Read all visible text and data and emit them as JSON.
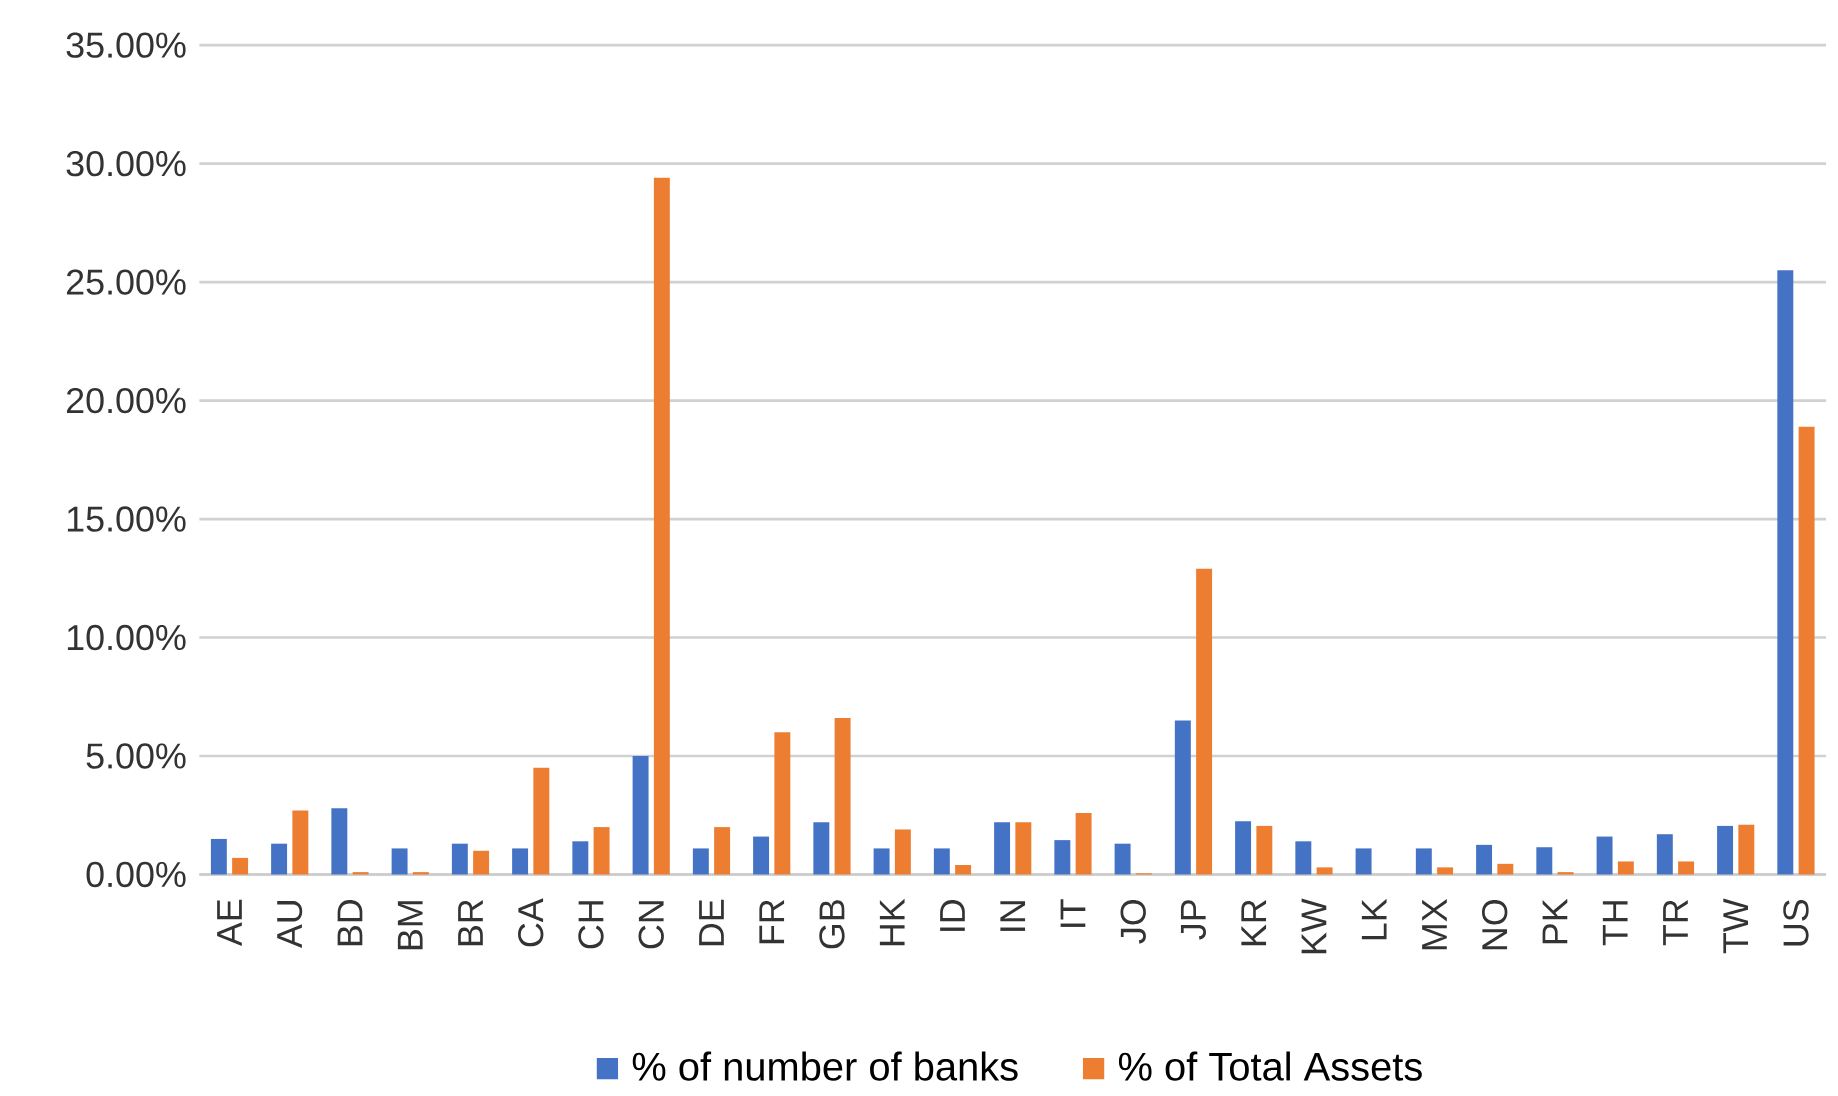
{
  "chart_data": {
    "type": "bar",
    "categories": [
      "AE",
      "AU",
      "BD",
      "BM",
      "BR",
      "CA",
      "CH",
      "CN",
      "DE",
      "FR",
      "GB",
      "HK",
      "ID",
      "IN",
      "IT",
      "JO",
      "JP",
      "KR",
      "KW",
      "LK",
      "MX",
      "NO",
      "PK",
      "TH",
      "TR",
      "TW",
      "US"
    ],
    "series": [
      {
        "name": "% of number of banks",
        "color": "#4472c4",
        "values": [
          1.5,
          1.3,
          2.8,
          1.1,
          1.3,
          1.1,
          1.4,
          5.0,
          1.1,
          1.6,
          2.2,
          1.1,
          1.1,
          2.2,
          1.45,
          1.3,
          6.5,
          2.25,
          1.4,
          1.1,
          1.1,
          1.25,
          1.15,
          1.6,
          1.7,
          2.05,
          25.5
        ]
      },
      {
        "name": "% of Total Assets",
        "color": "#ed7d31",
        "values": [
          0.7,
          2.7,
          0.1,
          0.1,
          1.0,
          4.5,
          2.0,
          29.4,
          2.0,
          6.0,
          6.6,
          1.9,
          0.4,
          2.2,
          2.6,
          0.05,
          12.9,
          2.05,
          0.3,
          0,
          0.3,
          0.45,
          0.1,
          0.55,
          0.55,
          2.1,
          18.9
        ]
      }
    ],
    "ylim": [
      0,
      35
    ],
    "yticks": [
      {
        "value": 0,
        "label": "0.00%"
      },
      {
        "value": 5,
        "label": "5.00%"
      },
      {
        "value": 10,
        "label": "10.00%"
      },
      {
        "value": 15,
        "label": "15.00%"
      },
      {
        "value": 20,
        "label": "20.00%"
      },
      {
        "value": 25,
        "label": "25.00%"
      },
      {
        "value": 30,
        "label": "30.00%"
      },
      {
        "value": 35,
        "label": "35.00%"
      }
    ],
    "grid": "y",
    "legend": "bottom"
  }
}
